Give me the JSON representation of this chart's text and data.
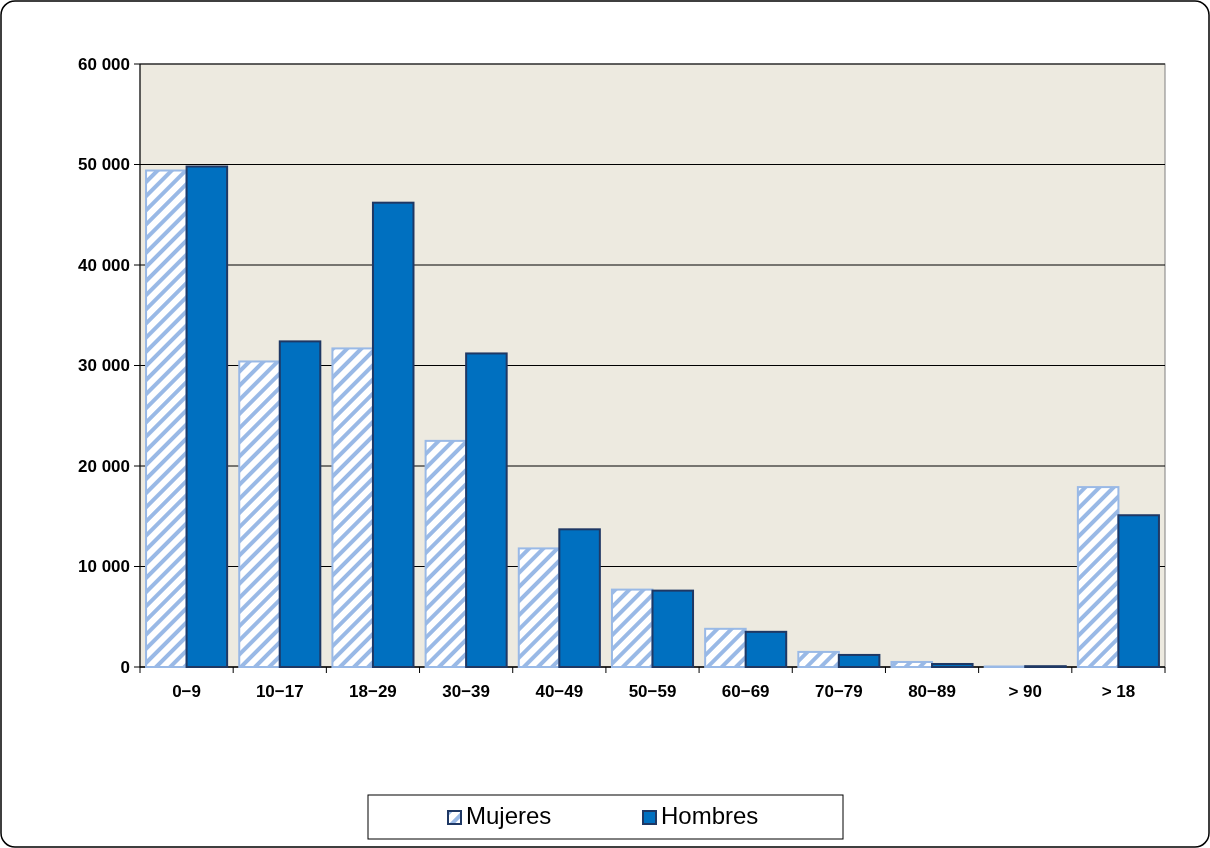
{
  "chart_data": {
    "type": "bar",
    "categories": [
      "0−9",
      "10−17",
      "18−29",
      "30−39",
      "40−49",
      "50−59",
      "60−69",
      "70−79",
      "80−89",
      "> 90",
      "> 18"
    ],
    "series": [
      {
        "name": "Mujeres",
        "color": "#99b9e6",
        "values": [
          49400,
          30400,
          31700,
          22500,
          11800,
          7700,
          3800,
          1500,
          500,
          50,
          17900
        ]
      },
      {
        "name": "Hombres",
        "color": "#0070c0",
        "values": [
          49800,
          32400,
          46200,
          31200,
          13700,
          7600,
          3500,
          1200,
          300,
          80,
          15100
        ]
      }
    ],
    "ylim": [
      0,
      60000
    ],
    "yticks": [
      {
        "value": 0,
        "label": "0"
      },
      {
        "value": 10000,
        "label": "10 000"
      },
      {
        "value": 20000,
        "label": "20 000"
      },
      {
        "value": 30000,
        "label": "30 000"
      },
      {
        "value": 40000,
        "label": "40 000"
      },
      {
        "value": 50000,
        "label": "50 000"
      },
      {
        "value": 60000,
        "label": "60 000"
      }
    ],
    "grid": "y",
    "legend": "bottom"
  }
}
